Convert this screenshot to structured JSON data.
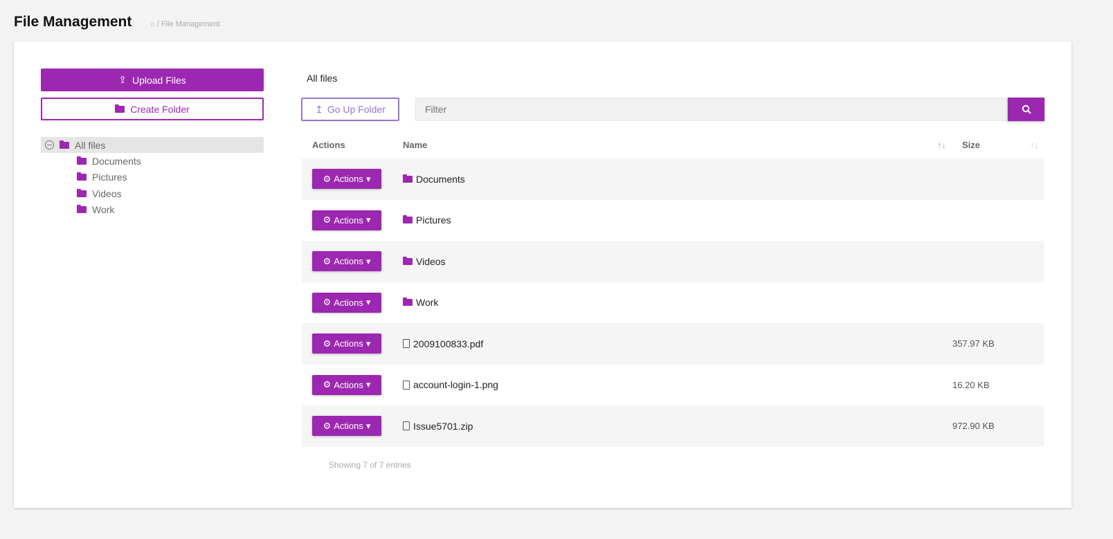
{
  "header": {
    "title": "File Management",
    "breadcrumb": "/ File Management"
  },
  "sidebar": {
    "upload_label": "Upload Files",
    "create_label": "Create Folder",
    "tree": {
      "root": "All files",
      "children": [
        "Documents",
        "Pictures",
        "Videos",
        "Work"
      ]
    }
  },
  "main": {
    "current_path": "All files",
    "go_up_label": "Go Up Folder",
    "filter_placeholder": "Filter",
    "columns": {
      "actions": "Actions",
      "name": "Name",
      "size": "Size"
    },
    "rows": [
      {
        "action": "Actions",
        "name": "Documents",
        "type": "folder",
        "size": ""
      },
      {
        "action": "Actions",
        "name": "Pictures",
        "type": "folder",
        "size": ""
      },
      {
        "action": "Actions",
        "name": "Videos",
        "type": "folder",
        "size": ""
      },
      {
        "action": "Actions",
        "name": "Work",
        "type": "folder",
        "size": ""
      },
      {
        "action": "Actions",
        "name": "2009100833.pdf",
        "type": "file",
        "size": "357.97 KB"
      },
      {
        "action": "Actions",
        "name": "account-login-1.png",
        "type": "file",
        "size": "16.20 KB"
      },
      {
        "action": "Actions",
        "name": "Issue5701.zip",
        "type": "file",
        "size": "972.90 KB"
      }
    ],
    "footer": "Showing 7 of 7 entries"
  },
  "colors": {
    "accent": "#9c27b0",
    "secondary": "#9575cd"
  }
}
